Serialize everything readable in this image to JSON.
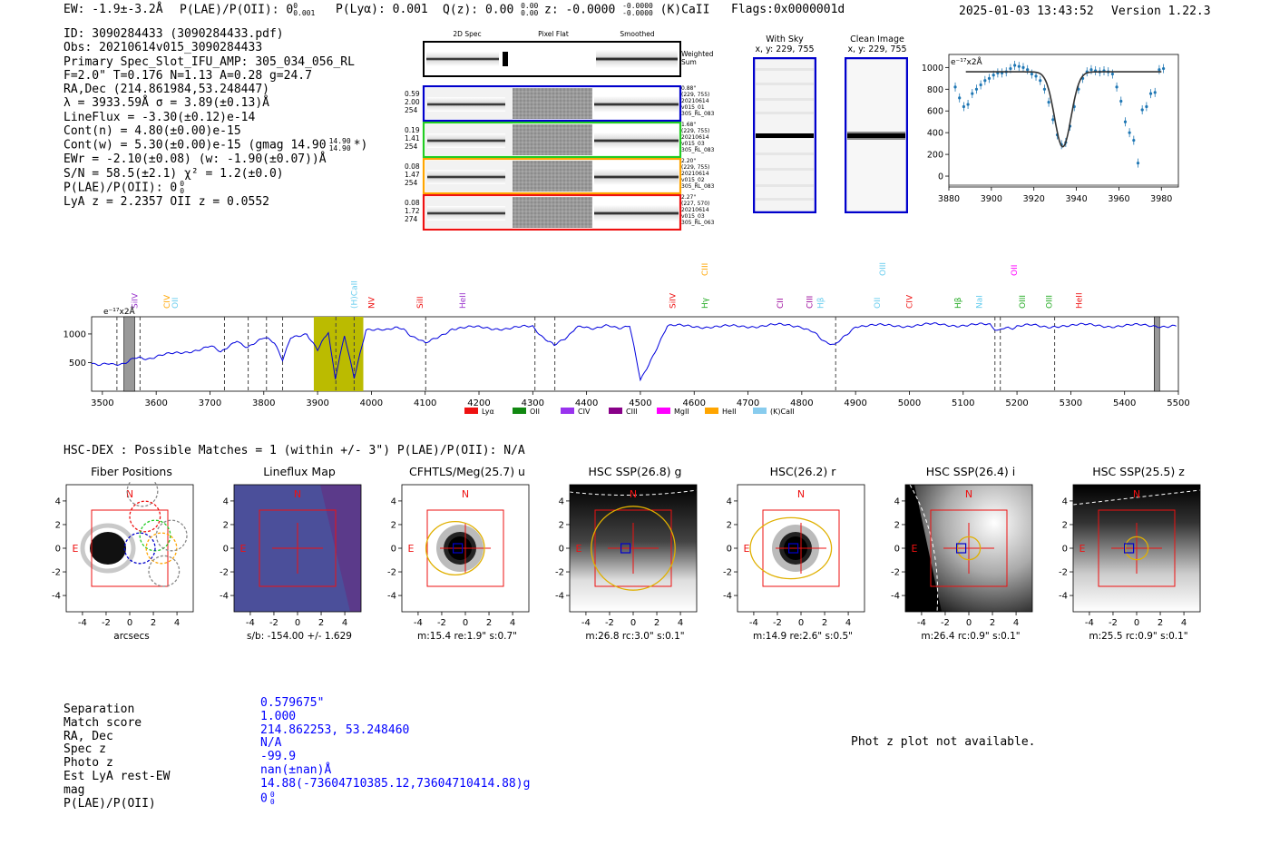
{
  "header": {
    "ew": "EW: -1.9±-3.2Å",
    "plae_label": "P(LAE)/P(OII): 0",
    "plae_sup": "0",
    "plae_sub": "0.001",
    "plya": "P(Lyα): 0.001",
    "qz_label": "Q(z): 0.00",
    "qz_sup": "0.00",
    "qz_sub": "0.00",
    "z_label": "z: -0.0000",
    "z_sup": "-0.0000",
    "z_sub": "-0.0000",
    "kcaii": "(K)CaII",
    "flags": "Flags:0x0000001d",
    "datetime": "2025-01-03 13:43:52",
    "version": "Version 1.22.3"
  },
  "info": {
    "id": "ID: 3090284433 (3090284433.pdf)",
    "obs": "Obs: 20210614v015_3090284433",
    "slot": "Primary Spec_Slot_IFU_AMP: 305_034_056_RL",
    "fwhm": "F=2.0\"  T=0.176  N=1.13  A=0.28  g=24.7",
    "radec": "RA,Dec (214.861984,53.248447)",
    "lambda": "λ = 3933.59Å  σ = 3.89(±0.13)Å",
    "lineflux": "LineFlux = -3.30(±0.12)e-14",
    "contn": "Cont(n) = 4.80(±0.00)e-15",
    "contw": "Cont(w) = 5.30(±0.00)e-15 (gmag 14.90",
    "contw_sup": "14.90",
    "contw_sub": "14.90",
    "contw_end": "*)",
    "ewr": "EWr = -2.10(±0.08) (w: -1.90(±0.07))Å",
    "sn": "S/N = 58.5(±2.1)  χ² = 1.2(±0.0)",
    "plae": "P(LAE)/P(OII): 0",
    "plae_sup": "0",
    "plae_sub": "0",
    "lyaz": "LyA z = 2.2357   OII z = 0.0552"
  },
  "cutouts": {
    "col_headers": [
      "2D Spec",
      "Pixel Flat",
      "Smoothed"
    ],
    "weighted_sum": [
      "Weighted",
      "Sum"
    ],
    "rows": [
      {
        "left": [
          "0.59",
          "2.00",
          "254"
        ],
        "right": [
          "0.88\"",
          "(229, 755)",
          "20210614",
          "v015_01",
          "305_RL_083"
        ],
        "color": "#0000cc"
      },
      {
        "left": [
          "0.19",
          "1.41",
          "254"
        ],
        "right": [
          "1.68\"",
          "(229, 755)",
          "20210614",
          "v015_03",
          "305_RL_083"
        ],
        "color": "#22cc22"
      },
      {
        "left": [
          "0.08",
          "1.47",
          "254"
        ],
        "right": [
          "2.20\"",
          "(229, 755)",
          "20210614",
          "v015_02",
          "305_RL_083"
        ],
        "color": "#ffa500"
      },
      {
        "left": [
          "0.08",
          "1.72",
          "274"
        ],
        "right": [
          "2.27\"",
          "(227, 570)",
          "20210614",
          "v015_03",
          "305_RL_063"
        ],
        "color": "#ee1111"
      }
    ],
    "with_sky": [
      "With Sky",
      "x, y: 229, 755"
    ],
    "clean_image": [
      "Clean Image",
      "x, y: 229, 755"
    ]
  },
  "zoom_plot": {
    "ylabel": "e⁻¹⁷x2Å",
    "x_ticks": [
      "3880",
      "3900",
      "3920",
      "3940",
      "3960",
      "3980"
    ],
    "y_ticks": [
      "0",
      "200",
      "400",
      "600",
      "800",
      "1000"
    ]
  },
  "chart_data": {
    "type": "line",
    "title": "",
    "ylabel": "e⁻¹⁷x2Å",
    "xlim": [
      3480,
      5500
    ],
    "ylim": [
      0,
      1300
    ],
    "x_ticks": [
      3500,
      3600,
      3700,
      3800,
      3900,
      4000,
      4100,
      4200,
      4300,
      4400,
      4500,
      4600,
      4700,
      4800,
      4900,
      5000,
      5100,
      5200,
      5300,
      5400,
      5500
    ],
    "y_ticks": [
      500,
      1000
    ],
    "series": [
      {
        "name": "spectrum",
        "x": [
          3480,
          3520,
          3560,
          3600,
          3650,
          3700,
          3720,
          3750,
          3770,
          3800,
          3820,
          3835,
          3850,
          3880,
          3900,
          3920,
          3933,
          3950,
          3968,
          3990,
          4020,
          4060,
          4100,
          4150,
          4200,
          4250,
          4300,
          4340,
          4380,
          4420,
          4480,
          4500,
          4550,
          4600,
          4650,
          4700,
          4750,
          4800,
          4861,
          4900,
          4950,
          5000,
          5050,
          5100,
          5150,
          5167,
          5200,
          5270,
          5300,
          5350,
          5400,
          5450,
          5500
        ],
        "y": [
          500,
          450,
          560,
          600,
          680,
          780,
          680,
          900,
          760,
          920,
          850,
          560,
          960,
          1020,
          700,
          1050,
          200,
          1000,
          250,
          1080,
          1100,
          1080,
          820,
          1100,
          1110,
          1100,
          1120,
          780,
          1100,
          1120,
          1130,
          200,
          1130,
          1140,
          1120,
          1140,
          1150,
          1140,
          780,
          1150,
          1140,
          1150,
          1160,
          1160,
          1150,
          1060,
          1140,
          1140,
          1150,
          1150,
          1140,
          1150,
          1140
        ]
      }
    ],
    "lines": [
      {
        "label": "SiIV",
        "wave": 3560,
        "color": "#9933cc"
      },
      {
        "label": "CIV",
        "wave": 3620,
        "color": "#ffa500"
      },
      {
        "label": "OII",
        "wave": 3635,
        "color": "#66ccee"
      },
      {
        "label": "(H)CaII",
        "wave": 3968,
        "color": "#66ccee"
      },
      {
        "label": "NV",
        "wave": 4000,
        "color": "#ee1111"
      },
      {
        "label": "SiII",
        "wave": 4090,
        "color": "#ee1111"
      },
      {
        "label": "HeII",
        "wave": 4170,
        "color": "#9933cc"
      },
      {
        "label": "SiIV",
        "wave": 4560,
        "color": "#ee1111"
      },
      {
        "label": "CIII",
        "wave": 4620,
        "color": "#ffa500"
      },
      {
        "label": "Hγ",
        "wave": 4620,
        "color": "#22aa22"
      },
      {
        "label": "CII",
        "wave": 4760,
        "color": "#990099"
      },
      {
        "label": "CIII",
        "wave": 4815,
        "color": "#990099"
      },
      {
        "label": "Hβ",
        "wave": 4835,
        "color": "#66ccee"
      },
      {
        "label": "OII",
        "wave": 4940,
        "color": "#66ccee"
      },
      {
        "label": "OIII",
        "wave": 4950,
        "color": "#66ccee"
      },
      {
        "label": "CIV",
        "wave": 5000,
        "color": "#ee1111"
      },
      {
        "label": "Hβ",
        "wave": 5090,
        "color": "#22aa22"
      },
      {
        "label": "NaI",
        "wave": 5130,
        "color": "#66ccee"
      },
      {
        "label": "OIII",
        "wave": 5210,
        "color": "#22aa22"
      },
      {
        "label": "OII",
        "wave": 5195,
        "color": "#ff00ff"
      },
      {
        "label": "OIII",
        "wave": 5260,
        "color": "#22aa22"
      },
      {
        "label": "HeII",
        "wave": 5315,
        "color": "#ee1111"
      }
    ],
    "legend": [
      {
        "label": "Lyα",
        "color": "#ee1111"
      },
      {
        "label": "OII",
        "color": "#118811"
      },
      {
        "label": "CIV",
        "color": "#9933ee"
      },
      {
        "label": "CIII",
        "color": "#880088"
      },
      {
        "label": "MgII",
        "color": "#ff00ff"
      },
      {
        "label": "HeII",
        "color": "#ffa500"
      },
      {
        "label": "(K)CaII",
        "color": "#88ccee"
      }
    ]
  },
  "hsc": {
    "header": "HSC-DEX : Possible Matches = 1 (within +/- 3\")  P(LAE)/P(OII): N/A",
    "panels": [
      {
        "title": "Fiber Positions",
        "caption": "arcsecs"
      },
      {
        "title": "Lineflux Map",
        "caption": "s/b: -154.00 +/- 1.629"
      },
      {
        "title": "CFHTLS/Meg(25.7) u",
        "caption": "m:15.4  re:1.9\"  s:0.7\""
      },
      {
        "title": "HSC SSP(26.8) g",
        "caption": "m:26.8 rc:3.0\"  s:0.1\""
      },
      {
        "title": "HSC(26.2) r",
        "caption": "m:14.9  re:2.6\"  s:0.5\""
      },
      {
        "title": "HSC SSP(26.4) i",
        "caption": "m:26.4 rc:0.9\"  s:0.1\""
      },
      {
        "title": "HSC SSP(25.5) z",
        "caption": "m:25.5 rc:0.9\"  s:0.1\""
      }
    ],
    "axis_ticks": [
      "-4",
      "-2",
      "0",
      "2",
      "4"
    ],
    "n_label": "N",
    "e_label": "E"
  },
  "match": {
    "labels": [
      "Separation",
      "Match score",
      "RA, Dec",
      "Spec z",
      "Photo z",
      "Est LyA rest-EW",
      "mag",
      "P(LAE)/P(OII)"
    ],
    "values": [
      "0.579675\"",
      "1.000",
      "214.862253, 53.248460",
      "N/A",
      "-99.9",
      "nan(±nan)Å",
      "14.88(-73604710385.12,73604710414.88)g",
      "0"
    ],
    "plae_sup": "0",
    "plae_sub": "0",
    "photz_note": "Phot z plot not available."
  }
}
